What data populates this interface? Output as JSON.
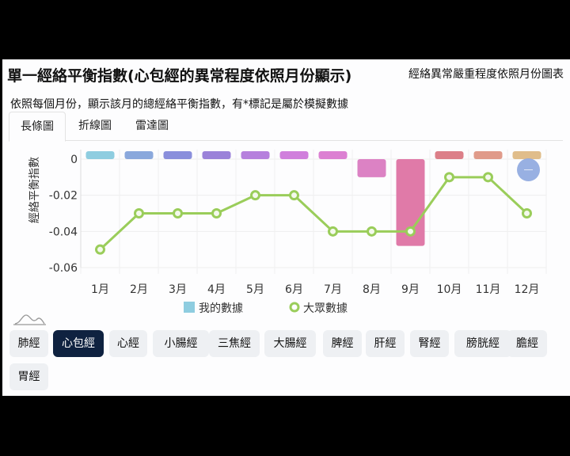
{
  "header": {
    "title": "單一經絡平衡指數(心包經的異常程度依照月份顯示)",
    "right_label": "經絡異常嚴重程度依照月份圖表"
  },
  "description": "依照每個月份，顯示該月的總經絡平衡指數，有*標記是屬於模擬數據",
  "tabs": [
    {
      "label": "長條圖",
      "active": true
    },
    {
      "label": "折線圖",
      "active": false
    },
    {
      "label": "雷達圖",
      "active": false
    }
  ],
  "chart_data": {
    "type": "bar",
    "categories": [
      "1月",
      "2月",
      "3月",
      "4月",
      "5月",
      "6月",
      "7月",
      "8月",
      "9月",
      "10月",
      "11月",
      "12月"
    ],
    "ylabel": "經絡平衡指數",
    "ylim": [
      -0.06,
      0
    ],
    "yticks": [
      "0",
      "-0.02",
      "-0.04",
      "-0.06"
    ],
    "yticks_values": [
      0,
      -0.02,
      -0.04,
      -0.06
    ],
    "grid": true,
    "legend_position": "bottom",
    "series": [
      {
        "name": "我的數據",
        "type": "bar",
        "values": [
          0,
          0,
          0,
          0,
          0,
          0,
          0,
          -0.01,
          -0.048,
          0,
          0,
          0
        ],
        "colors": [
          "#8ecde0",
          "#8aa8dc",
          "#8a8fdc",
          "#9b82d9",
          "#b680dd",
          "#d07fdc",
          "#dc80d2",
          "#dc82c4",
          "#e07aa8",
          "#dc7f88",
          "#e09b8a",
          "#e0bd8a"
        ]
      },
      {
        "name": "大眾數據",
        "type": "line",
        "values": [
          -0.05,
          -0.03,
          -0.03,
          -0.03,
          -0.02,
          -0.02,
          -0.04,
          -0.04,
          -0.04,
          -0.01,
          -0.01,
          -0.03
        ],
        "color": "#9acd5a"
      }
    ]
  },
  "meridians": [
    {
      "label": "肺經",
      "active": false
    },
    {
      "label": "心包經",
      "active": true
    },
    {
      "label": "心經",
      "active": false
    },
    {
      "label": "小腸經",
      "active": false
    },
    {
      "label": "三焦經",
      "active": false
    },
    {
      "label": "大腸經",
      "active": false
    },
    {
      "label": "脾經",
      "active": false
    },
    {
      "label": "肝經",
      "active": false
    },
    {
      "label": "腎經",
      "active": false
    },
    {
      "label": "膀胱經",
      "active": false
    },
    {
      "label": "膽經",
      "active": false
    },
    {
      "label": "胃經",
      "active": false
    }
  ]
}
